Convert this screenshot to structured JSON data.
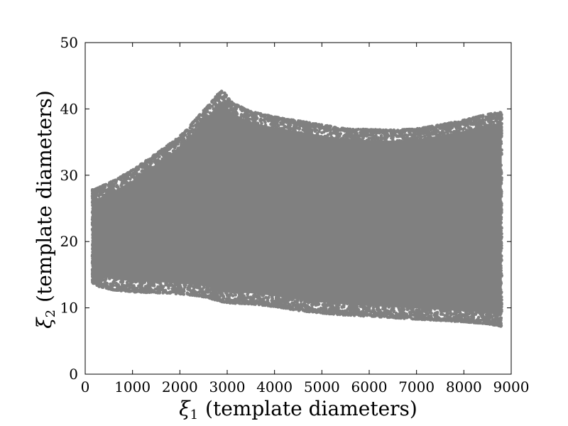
{
  "chart_data": {
    "type": "scatter",
    "title": "",
    "xlabel": "(template diameters)",
    "xlabel_symbol": "ξ",
    "xlabel_subscript": "1",
    "ylabel": "(template diameters)",
    "ylabel_symbol": "ξ",
    "ylabel_subscript": "2",
    "xlim": [
      0,
      9000
    ],
    "ylim": [
      0,
      50
    ],
    "xticks": [
      0,
      1000,
      2000,
      3000,
      4000,
      5000,
      6000,
      7000,
      8000,
      9000
    ],
    "yticks": [
      0,
      10,
      20,
      30,
      40,
      50
    ],
    "grid": false,
    "legend": "none",
    "point_color": "#808080",
    "series": [
      {
        "x_range": [
          150,
          8800
        ],
        "upper_envelope": {
          "x": [
            150,
            300,
            600,
            1000,
            1400,
            1800,
            2100,
            2400,
            2600,
            2800,
            2900,
            3100,
            3500,
            4000,
            4500,
            5000,
            5500,
            6000,
            6500,
            7000,
            7500,
            8000,
            8500,
            8800
          ],
          "y": [
            27.8,
            28.2,
            29.2,
            30.8,
            32.8,
            34.8,
            36.5,
            39.0,
            40.5,
            42.2,
            42.8,
            41.0,
            39.6,
            38.8,
            38.2,
            37.6,
            37.0,
            36.9,
            36.8,
            37.0,
            37.6,
            38.3,
            39.2,
            39.5
          ]
        },
        "lower_envelope": {
          "x": [
            150,
            300,
            600,
            1000,
            1400,
            1800,
            2100,
            2400,
            2600,
            2800,
            2900,
            3100,
            3500,
            4000,
            4500,
            5000,
            5500,
            6000,
            6500,
            7000,
            7500,
            8000,
            8500,
            8800
          ],
          "y": [
            13.8,
            13.2,
            12.7,
            12.4,
            12.3,
            12.2,
            12.0,
            11.8,
            11.5,
            11.1,
            10.9,
            10.7,
            10.6,
            10.2,
            9.6,
            9.2,
            8.9,
            8.7,
            8.5,
            8.3,
            8.1,
            7.9,
            7.6,
            7.2
          ]
        }
      }
    ]
  }
}
